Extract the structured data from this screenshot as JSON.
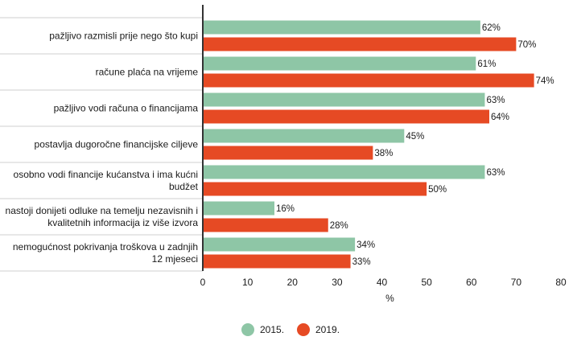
{
  "chart_data": {
    "type": "bar",
    "orientation": "horizontal",
    "categories": [
      [
        "pažljivo razmisli prije nego što kupi"
      ],
      [
        "račune plaća na vrijeme"
      ],
      [
        "pažljivo vodi računa o financijama"
      ],
      [
        "postavlja dugoročne financijske ciljeve"
      ],
      [
        "osobno vodi financije kućanstva i ima kućni",
        "budžet"
      ],
      [
        "nastoji donijeti odluke na temelju nezavisnih i",
        "kvalitetnih informacija iz više izvora"
      ],
      [
        "nemogućnost pokrivanja troškova u zadnjih",
        "12 mjeseci"
      ]
    ],
    "series": [
      {
        "name": "2015.",
        "color": "#8ec6a6",
        "values": [
          62,
          61,
          63,
          45,
          63,
          16,
          34
        ]
      },
      {
        "name": "2019.",
        "color": "#e64a24",
        "values": [
          70,
          74,
          64,
          38,
          50,
          28,
          33
        ]
      }
    ],
    "value_suffix": "%",
    "xlabel": "%",
    "xlim": [
      0,
      80
    ],
    "xticks": [
      0,
      10,
      20,
      30,
      40,
      50,
      60,
      70,
      80
    ],
    "grid": false,
    "legend_position": "bottom-center"
  }
}
